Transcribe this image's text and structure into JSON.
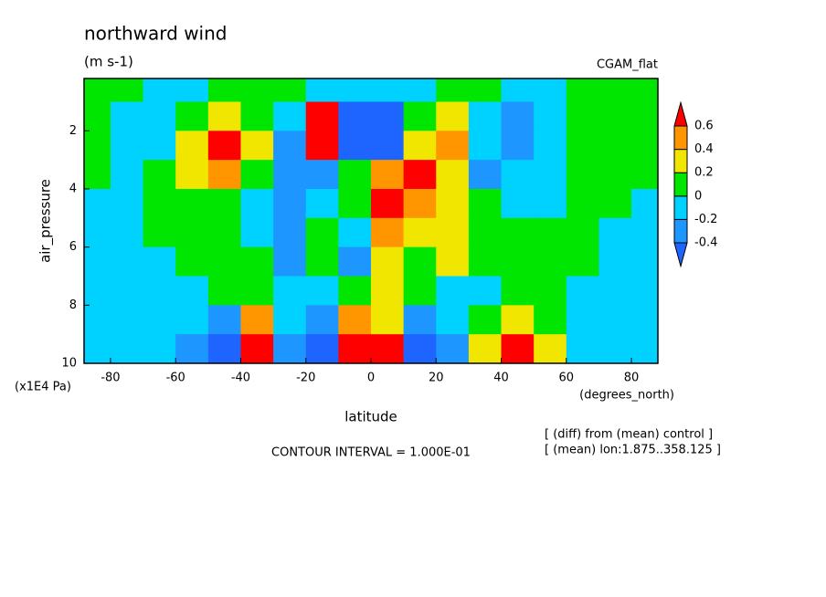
{
  "chart_data": {
    "type": "contour",
    "title": "northward wind",
    "subtitle": "(m s-1)",
    "label_right": "CGAM_flat",
    "ylabel": "air_pressure",
    "yunit": "(x1E4 Pa)",
    "xlabel": "latitude",
    "xunit": "(degrees_north)",
    "note": "CONTOUR INTERVAL = 1.000E-01",
    "info": [
      "[ (diff) from (mean) control ]",
      "[ (mean) lon:1.875..358.125 ]"
    ],
    "xlim": [
      -88.125,
      88.125
    ],
    "ylim": [
      10,
      0.2
    ],
    "xticks": [
      -80,
      -60,
      -40,
      -20,
      0,
      20,
      40,
      60,
      80
    ],
    "yticks": [
      2,
      4,
      6,
      8,
      10
    ],
    "x": [
      -85,
      -75,
      -65,
      -55,
      -45,
      -35,
      -25,
      -15,
      -5,
      5,
      15,
      25,
      35,
      45,
      55,
      65,
      75,
      85
    ],
    "y": [
      0.5,
      1.5,
      2.5,
      3.5,
      4.5,
      5.5,
      6.5,
      7.5,
      8.5,
      9.5
    ],
    "z": [
      [
        0,
        0.1,
        -0.1,
        -0.1,
        0.1,
        0.1,
        0.1,
        -0.1,
        -0.1,
        -0.1,
        -0.1,
        0.1,
        0.1,
        -0.1,
        -0.1,
        0.1,
        0.1,
        0.1
      ],
      [
        0.1,
        -0.1,
        -0.1,
        0.1,
        0.3,
        0.1,
        -0.1,
        0.7,
        -0.5,
        -0.5,
        0.1,
        0.3,
        -0.1,
        -0.3,
        -0.1,
        0.1,
        0.1,
        0.05
      ],
      [
        0.1,
        -0.1,
        -0.1,
        0.3,
        0.7,
        0.3,
        -0.3,
        0.8,
        -0.6,
        -0.5,
        0.3,
        0.5,
        -0.1,
        -0.3,
        -0.2,
        0.1,
        0.1,
        0.05
      ],
      [
        0.05,
        -0.1,
        0.1,
        0.3,
        0.5,
        0.1,
        -0.3,
        -0.3,
        0.1,
        0.5,
        0.7,
        0.3,
        -0.3,
        -0.2,
        -0.1,
        0.1,
        0.05,
        0.05
      ],
      [
        -0.1,
        -0.1,
        0.1,
        0.1,
        0.1,
        -0.1,
        -0.3,
        -0.2,
        0.1,
        0.7,
        0.5,
        0.2,
        0.1,
        -0.1,
        -0.1,
        0.1,
        0.05,
        -0.1
      ],
      [
        -0.1,
        -0.1,
        0.05,
        0.1,
        0.1,
        -0.1,
        -0.3,
        0.1,
        -0.1,
        0.5,
        0.3,
        0.3,
        0.1,
        0.05,
        0.1,
        0.1,
        -0.1,
        -0.1
      ],
      [
        -0.1,
        -0.1,
        -0.1,
        0.1,
        0.1,
        0.1,
        -0.3,
        0.1,
        -0.3,
        0.3,
        0.1,
        0.3,
        0.1,
        0.1,
        0.1,
        0.05,
        -0.1,
        -0.1
      ],
      [
        -0.1,
        -0.1,
        -0.1,
        -0.1,
        0.05,
        0.1,
        -0.1,
        -0.1,
        0.1,
        0.3,
        0.1,
        -0.1,
        -0.1,
        0.1,
        0.1,
        -0.1,
        -0.1,
        -0.1
      ],
      [
        -0.1,
        -0.1,
        -0.1,
        -0.1,
        -0.3,
        0.5,
        -0.1,
        -0.3,
        0.5,
        0.3,
        -0.3,
        -0.1,
        0.1,
        0.3,
        0.1,
        -0.1,
        -0.1,
        -0.1
      ],
      [
        -0.1,
        -0.1,
        -0.1,
        -0.3,
        -0.5,
        0.7,
        -0.3,
        -0.5,
        0.7,
        0.7,
        -0.5,
        -0.3,
        0.3,
        0.7,
        0.3,
        -0.1,
        -0.1,
        -0.1
      ]
    ],
    "levels": [
      -0.4,
      -0.2,
      0,
      0.2,
      0.4,
      0.6
    ],
    "colors": [
      "#1e64ff",
      "#1e96ff",
      "#00d2ff",
      "#00e600",
      "#f0e600",
      "#ff9600",
      "#ff0000"
    ]
  }
}
